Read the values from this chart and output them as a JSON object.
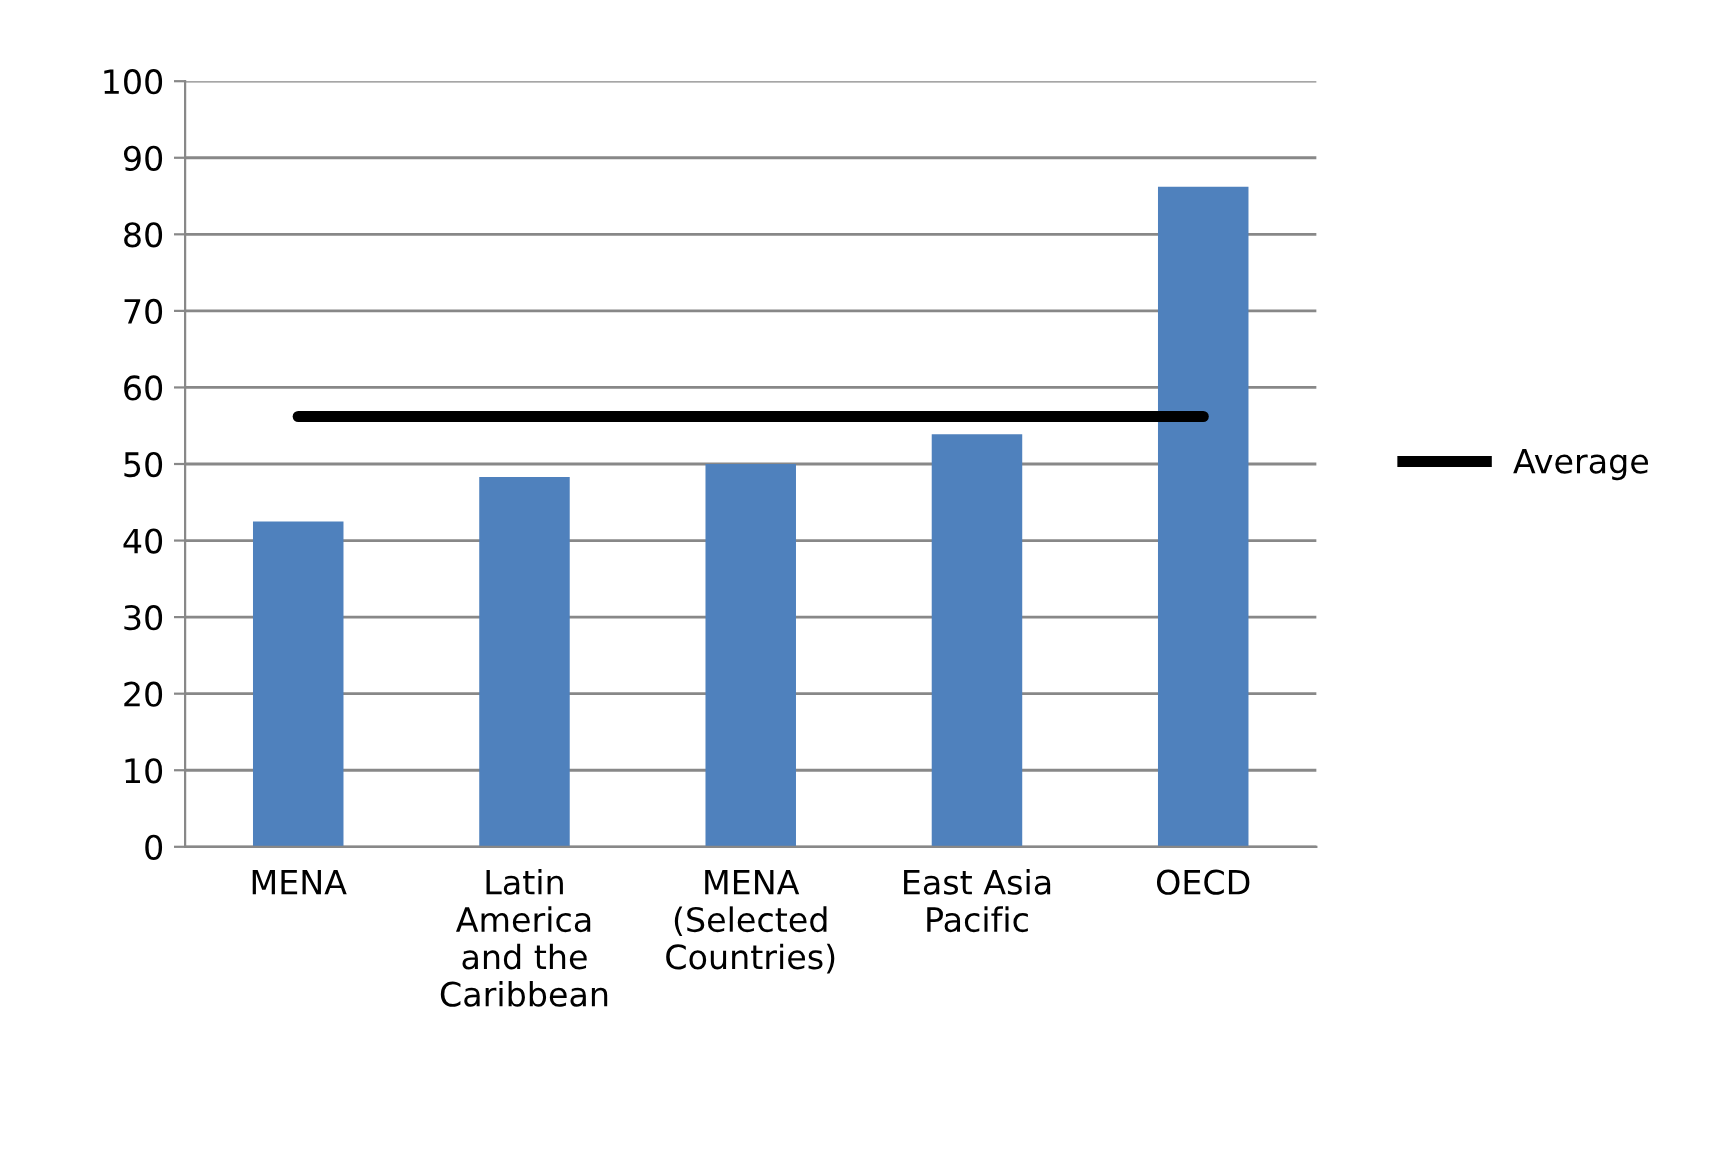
{
  "chart_data": {
    "type": "bar",
    "categories": [
      "MENA",
      "Latin\nAmerica\nand the\nCaribbean",
      "MENA\n(Selected\nCountries)",
      "East Asia\nPacific",
      "OECD"
    ],
    "series": [
      {
        "color": "#4f81bd",
        "values": [
          42.5,
          48.3,
          50,
          53.9,
          86.2
        ]
      },
      {
        "type": "line",
        "name": "Average",
        "color": "#000000",
        "values": [
          56.2,
          56.2,
          56.2,
          56.2,
          56.2
        ]
      }
    ],
    "ylim": [
      0,
      100
    ],
    "yticks": [
      0,
      10,
      20,
      30,
      40,
      50,
      60,
      70,
      80,
      90,
      100
    ],
    "grid": "y",
    "legend": "right",
    "marker": "none",
    "line_style": "solid"
  }
}
